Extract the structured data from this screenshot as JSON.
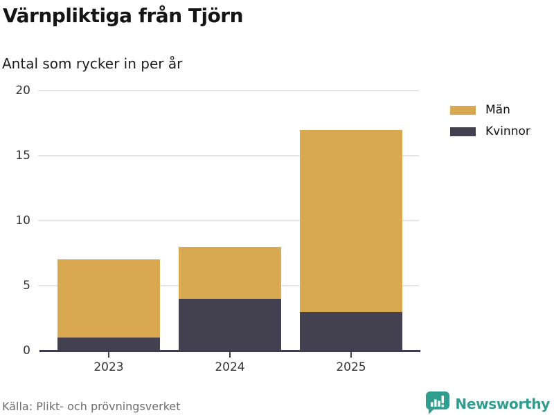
{
  "title": "Värnpliktiga från Tjörn",
  "subtitle": "Antal som rycker in per år",
  "source": "Källa: Plikt- och prövningsverket",
  "brand": {
    "name": "Newsworthy",
    "color": "#2f9e8f"
  },
  "colors": {
    "men": "#d8a950",
    "women": "#434050",
    "gridline": "#e4e4e4",
    "axis": "#3f3d4d",
    "tick_text": "#333333",
    "title_text": "#151515",
    "source_text": "#6e6e6e"
  },
  "legend": [
    {
      "label": "Män",
      "color": "#d8a950"
    },
    {
      "label": "Kvinnor",
      "color": "#434050"
    }
  ],
  "chart_data": {
    "type": "bar",
    "stacked": true,
    "title": "Värnpliktiga från Tjörn",
    "subtitle": "Antal som rycker in per år",
    "categories": [
      "2023",
      "2024",
      "2025"
    ],
    "series": [
      {
        "name": "Män",
        "color": "#d8a950",
        "values": [
          6,
          4,
          14
        ]
      },
      {
        "name": "Kvinnor",
        "color": "#434050",
        "values": [
          1,
          4,
          3
        ]
      }
    ],
    "totals": [
      7,
      8,
      17
    ],
    "xlabel": "",
    "ylabel": "",
    "ylim": [
      0,
      20
    ],
    "yticks": [
      0,
      5,
      10,
      15,
      20
    ],
    "grid": true,
    "legend_position": "top-right",
    "source": "Källa: Plikt- och prövningsverket"
  }
}
